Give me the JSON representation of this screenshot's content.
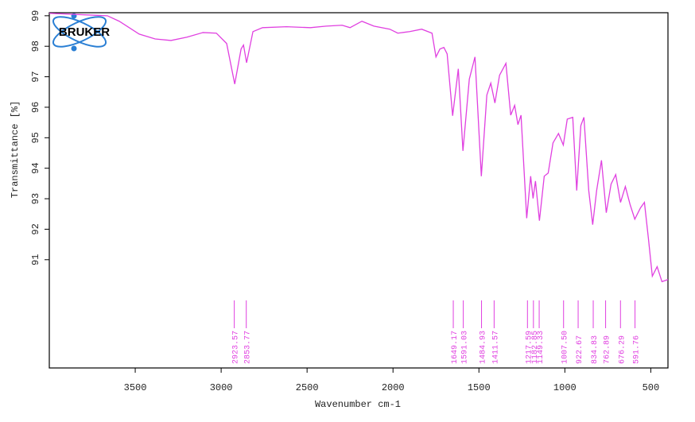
{
  "chart_data": {
    "type": "line",
    "logo": "BRUKER",
    "x_label": "Wavenumber cm-1",
    "y_label": "Transmittance [%]",
    "color": "#e040e0",
    "x": [
      4000,
      3662,
      3593,
      3477,
      3384,
      3292,
      3199,
      3106,
      3028,
      2968,
      2921,
      2884,
      2870,
      2852,
      2815,
      2759,
      2620,
      2481,
      2389,
      2296,
      2250,
      2181,
      2111,
      2019,
      1972,
      1903,
      1833,
      1773,
      1750,
      1727,
      1704,
      1685,
      1653,
      1620,
      1593,
      1556,
      1523,
      1486,
      1454,
      1431,
      1407,
      1380,
      1343,
      1315,
      1292,
      1273,
      1255,
      1222,
      1199,
      1185,
      1171,
      1148,
      1120,
      1097,
      1069,
      1037,
      1009,
      986,
      954,
      931,
      907,
      889,
      861,
      838,
      815,
      787,
      759,
      731,
      704,
      676,
      648,
      620,
      593,
      560,
      537,
      514,
      491,
      463,
      435,
      400
    ],
    "values": [
      99.08,
      99.0,
      98.82,
      98.4,
      98.24,
      98.19,
      98.3,
      98.45,
      98.43,
      98.09,
      96.76,
      97.91,
      98.04,
      97.46,
      98.48,
      98.61,
      98.64,
      98.61,
      98.66,
      98.69,
      98.61,
      98.82,
      98.66,
      98.56,
      98.43,
      98.48,
      98.56,
      98.43,
      97.65,
      97.91,
      97.96,
      97.75,
      95.72,
      97.26,
      94.57,
      96.92,
      97.65,
      93.74,
      96.4,
      96.79,
      96.14,
      97.05,
      97.44,
      95.74,
      96.06,
      95.43,
      95.74,
      92.36,
      93.74,
      93.01,
      93.58,
      92.28,
      93.74,
      93.84,
      94.83,
      95.14,
      94.76,
      95.61,
      95.67,
      93.27,
      95.4,
      95.67,
      93.27,
      92.15,
      93.27,
      94.26,
      92.54,
      93.48,
      93.79,
      92.88,
      93.4,
      92.8,
      92.33,
      92.7,
      92.88,
      91.71,
      90.46,
      90.77,
      90.28,
      90.35
    ],
    "peaks": [
      2923.57,
      2853.77,
      1649.17,
      1591.03,
      1484.93,
      1411.57,
      1217.59,
      1182.85,
      1149.33,
      {
        "value": 1007.5,
        "label": "1007.50"
      },
      922.67,
      834.83,
      762.89,
      676.29,
      591.76
    ],
    "xlim": [
      4000,
      400
    ],
    "ylim": [
      87.45,
      99.1
    ],
    "xticks": [
      3500,
      3000,
      2500,
      2000,
      1500,
      1000,
      500
    ],
    "yticks": [
      91,
      92,
      93,
      94,
      95,
      96,
      97,
      98,
      99
    ]
  }
}
